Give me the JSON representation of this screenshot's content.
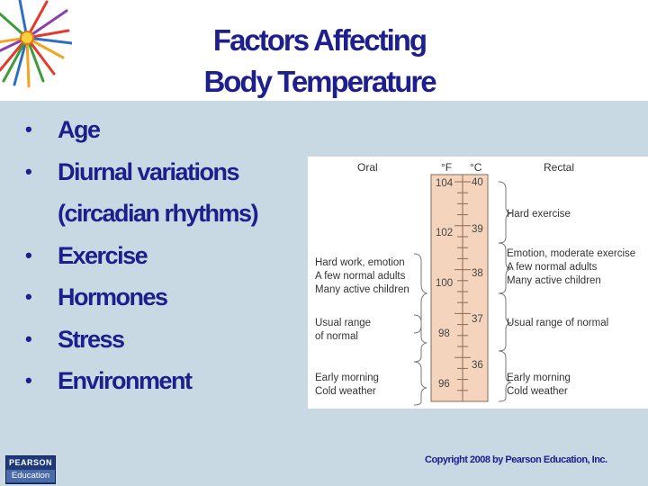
{
  "slide": {
    "title_line1": "Factors Affecting",
    "title_line2": "Body Temperature",
    "bullets": [
      {
        "text": "Age",
        "bullet": true
      },
      {
        "text": "Diurnal variations",
        "bullet": true
      },
      {
        "text": "(circadian rhythms)",
        "bullet": false
      },
      {
        "text": "Exercise",
        "bullet": true
      },
      {
        "text": "Hormones",
        "bullet": true
      },
      {
        "text": "Stress",
        "bullet": true
      },
      {
        "text": "Environment",
        "bullet": true
      }
    ],
    "bullet_char": "•",
    "copyright": "Copyright 2008 by Pearson Education, Inc.",
    "logo": {
      "line1": "PEARSON",
      "line2": "Education"
    }
  },
  "figure": {
    "oral_header": "Oral",
    "f_header": "°F",
    "c_header": "°C",
    "rectal_header": "Rectal",
    "fahrenheit_labels": [
      "104",
      "102",
      "100",
      "98",
      "96"
    ],
    "celsius_labels": [
      "40",
      "39",
      "38",
      "37",
      "36"
    ],
    "oral_groups": [
      {
        "lines": [
          "Hard work, emotion",
          "A few normal adults",
          "Many active children"
        ]
      },
      {
        "lines": [
          "Usual range",
          "of normal"
        ]
      },
      {
        "lines": [
          "Early morning",
          "Cold weather"
        ]
      }
    ],
    "rectal_groups": [
      {
        "lines": [
          "Hard exercise"
        ]
      },
      {
        "lines": [
          "Emotion, moderate exercise",
          "A few normal adults",
          "Many active children"
        ]
      },
      {
        "lines": [
          "Usual range of normal"
        ]
      },
      {
        "lines": [
          "Early morning",
          "Cold weather"
        ]
      }
    ],
    "colors": {
      "thermometer_fill": "#f4d4bc",
      "thermometer_stroke": "#8a6a55",
      "band": "#c8d9e4",
      "title": "#1d1f8c"
    }
  }
}
